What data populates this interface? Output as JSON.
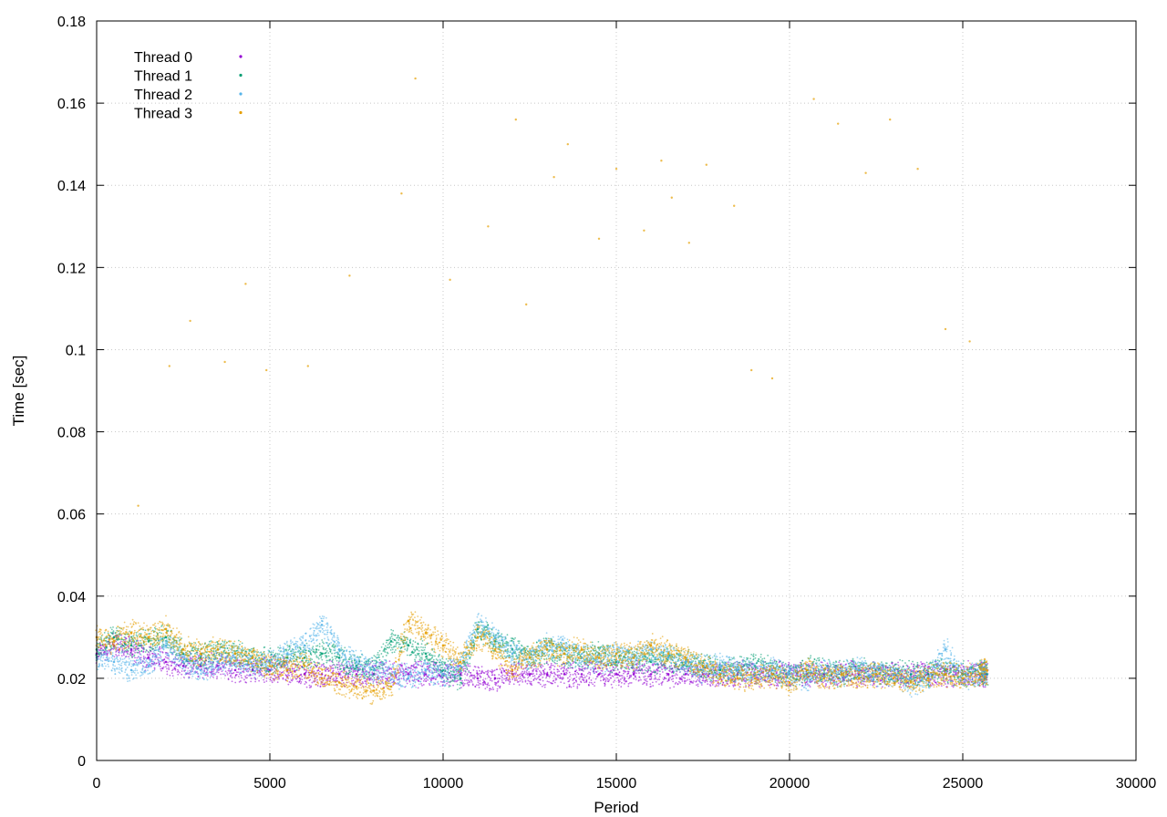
{
  "chart_data": {
    "type": "scatter",
    "title": "",
    "xlabel": "Period",
    "ylabel": "Time [sec]",
    "xlim": [
      0,
      30000
    ],
    "ylim": [
      0,
      0.18
    ],
    "x_ticks": [
      0,
      5000,
      10000,
      15000,
      20000,
      25000,
      30000
    ],
    "x_tick_labels": [
      "0",
      "5000",
      "10000",
      "15000",
      "20000",
      "25000",
      "30000"
    ],
    "y_ticks": [
      0,
      0.02,
      0.04,
      0.06,
      0.08,
      0.1,
      0.12,
      0.14,
      0.16,
      0.18
    ],
    "y_tick_labels": [
      "0",
      "0.02",
      "0.04",
      "0.06",
      "0.08",
      "0.1",
      "0.12",
      "0.14",
      "0.16",
      "0.18"
    ],
    "grid": true,
    "legend_position": "top-left",
    "series": [
      {
        "name": "Thread 0",
        "color": "#9400d3",
        "x": [
          0,
          500,
          1000,
          1500,
          2000,
          2500,
          3000,
          3500,
          4000,
          4500,
          5000,
          5500,
          6000,
          6500,
          7000,
          7500,
          8000,
          8500,
          9000,
          9500,
          10000,
          10500,
          11000,
          11500,
          12000,
          12500,
          13000,
          13500,
          14000,
          14500,
          15000,
          15500,
          16000,
          16500,
          17000,
          17500,
          18000,
          18500,
          19000,
          19500,
          20000,
          20500,
          21000,
          21500,
          22000,
          22500,
          23000,
          23500,
          24000,
          24500,
          25000,
          25500,
          25700
        ],
        "y": [
          0.026,
          0.028,
          0.027,
          0.025,
          0.024,
          0.023,
          0.023,
          0.023,
          0.022,
          0.022,
          0.022,
          0.022,
          0.021,
          0.021,
          0.021,
          0.021,
          0.021,
          0.021,
          0.021,
          0.021,
          0.021,
          0.021,
          0.02,
          0.02,
          0.021,
          0.021,
          0.021,
          0.021,
          0.021,
          0.021,
          0.021,
          0.021,
          0.021,
          0.021,
          0.021,
          0.021,
          0.021,
          0.021,
          0.021,
          0.021,
          0.021,
          0.021,
          0.021,
          0.021,
          0.021,
          0.021,
          0.021,
          0.021,
          0.021,
          0.021,
          0.021,
          0.021,
          0.021
        ]
      },
      {
        "name": "Thread 1",
        "color": "#009e73",
        "x": [
          0,
          500,
          1000,
          1500,
          2000,
          2500,
          3000,
          3500,
          4000,
          4500,
          5000,
          5500,
          6000,
          6500,
          7000,
          7500,
          8000,
          8500,
          9000,
          9500,
          10000,
          10500,
          11000,
          11500,
          12000,
          12500,
          13000,
          13500,
          14000,
          14500,
          15000,
          15500,
          16000,
          16500,
          17000,
          17500,
          18000,
          18500,
          19000,
          19500,
          20000,
          20500,
          21000,
          21500,
          22000,
          22500,
          23000,
          23500,
          24000,
          24500,
          25000,
          25500,
          25700
        ],
        "y": [
          0.027,
          0.03,
          0.028,
          0.029,
          0.03,
          0.026,
          0.025,
          0.027,
          0.026,
          0.025,
          0.024,
          0.025,
          0.025,
          0.026,
          0.025,
          0.023,
          0.022,
          0.029,
          0.028,
          0.026,
          0.022,
          0.02,
          0.032,
          0.029,
          0.027,
          0.025,
          0.027,
          0.026,
          0.025,
          0.026,
          0.024,
          0.025,
          0.024,
          0.025,
          0.024,
          0.023,
          0.022,
          0.022,
          0.023,
          0.022,
          0.021,
          0.022,
          0.022,
          0.021,
          0.022,
          0.021,
          0.021,
          0.021,
          0.021,
          0.022,
          0.021,
          0.021,
          0.021
        ]
      },
      {
        "name": "Thread 2",
        "color": "#56b4e9",
        "x": [
          0,
          500,
          1000,
          1500,
          2000,
          2500,
          3000,
          3500,
          4000,
          4500,
          5000,
          5500,
          6000,
          6500,
          7000,
          7500,
          8000,
          8500,
          9000,
          9500,
          10000,
          10500,
          11000,
          11500,
          12000,
          12500,
          13000,
          13500,
          14000,
          14500,
          15000,
          15500,
          16000,
          16500,
          17000,
          17500,
          18000,
          18500,
          19000,
          19500,
          20000,
          20500,
          21000,
          21500,
          22000,
          22500,
          23000,
          23500,
          24000,
          24500,
          25000,
          25500,
          25700
        ],
        "y": [
          0.025,
          0.024,
          0.022,
          0.023,
          0.028,
          0.024,
          0.022,
          0.024,
          0.025,
          0.023,
          0.024,
          0.026,
          0.028,
          0.033,
          0.027,
          0.024,
          0.022,
          0.021,
          0.02,
          0.022,
          0.021,
          0.023,
          0.033,
          0.03,
          0.026,
          0.025,
          0.028,
          0.027,
          0.025,
          0.024,
          0.026,
          0.025,
          0.027,
          0.025,
          0.024,
          0.022,
          0.023,
          0.022,
          0.021,
          0.022,
          0.021,
          0.02,
          0.022,
          0.021,
          0.022,
          0.021,
          0.021,
          0.019,
          0.02,
          0.027,
          0.02,
          0.021,
          0.022
        ]
      },
      {
        "name": "Thread 3",
        "color": "#e69f00",
        "x": [
          0,
          500,
          1000,
          1500,
          2000,
          2500,
          3000,
          3500,
          4000,
          4500,
          5000,
          5500,
          6000,
          6500,
          7000,
          7500,
          8000,
          8500,
          9000,
          9500,
          10000,
          10500,
          11000,
          11500,
          12000,
          12500,
          13000,
          13500,
          14000,
          14500,
          15000,
          15500,
          16000,
          16500,
          17000,
          17500,
          18000,
          18500,
          19000,
          19500,
          20000,
          20500,
          21000,
          21500,
          22000,
          22500,
          23000,
          23500,
          24000,
          24500,
          25000,
          25500,
          25700
        ],
        "y": [
          0.03,
          0.029,
          0.031,
          0.03,
          0.032,
          0.027,
          0.026,
          0.027,
          0.026,
          0.025,
          0.023,
          0.022,
          0.023,
          0.02,
          0.019,
          0.018,
          0.017,
          0.018,
          0.034,
          0.031,
          0.028,
          0.024,
          0.03,
          0.027,
          0.022,
          0.025,
          0.027,
          0.026,
          0.027,
          0.025,
          0.026,
          0.025,
          0.028,
          0.026,
          0.025,
          0.023,
          0.021,
          0.02,
          0.02,
          0.021,
          0.019,
          0.022,
          0.02,
          0.021,
          0.02,
          0.021,
          0.02,
          0.019,
          0.02,
          0.021,
          0.02,
          0.021,
          0.022
        ]
      },
      {
        "name": "",
        "color": "#e69f00",
        "x": [
          1200,
          2100,
          2700,
          3700,
          4300,
          4900,
          6100,
          7300,
          8800,
          9200,
          10200,
          11300,
          12100,
          12400,
          13200,
          13600,
          14500,
          15000,
          15800,
          16300,
          16600,
          17100,
          17600,
          18400,
          18900,
          19500,
          20700,
          21400,
          22200,
          22900,
          23700,
          24500,
          25200
        ],
        "y": [
          0.062,
          0.096,
          0.107,
          0.097,
          0.116,
          0.095,
          0.096,
          0.118,
          0.138,
          0.166,
          0.117,
          0.13,
          0.156,
          0.111,
          0.142,
          0.15,
          0.127,
          0.144,
          0.129,
          0.146,
          0.137,
          0.126,
          0.145,
          0.135,
          0.095,
          0.093,
          0.161,
          0.155,
          0.143,
          0.156,
          0.144,
          0.105,
          0.102
        ]
      }
    ]
  }
}
